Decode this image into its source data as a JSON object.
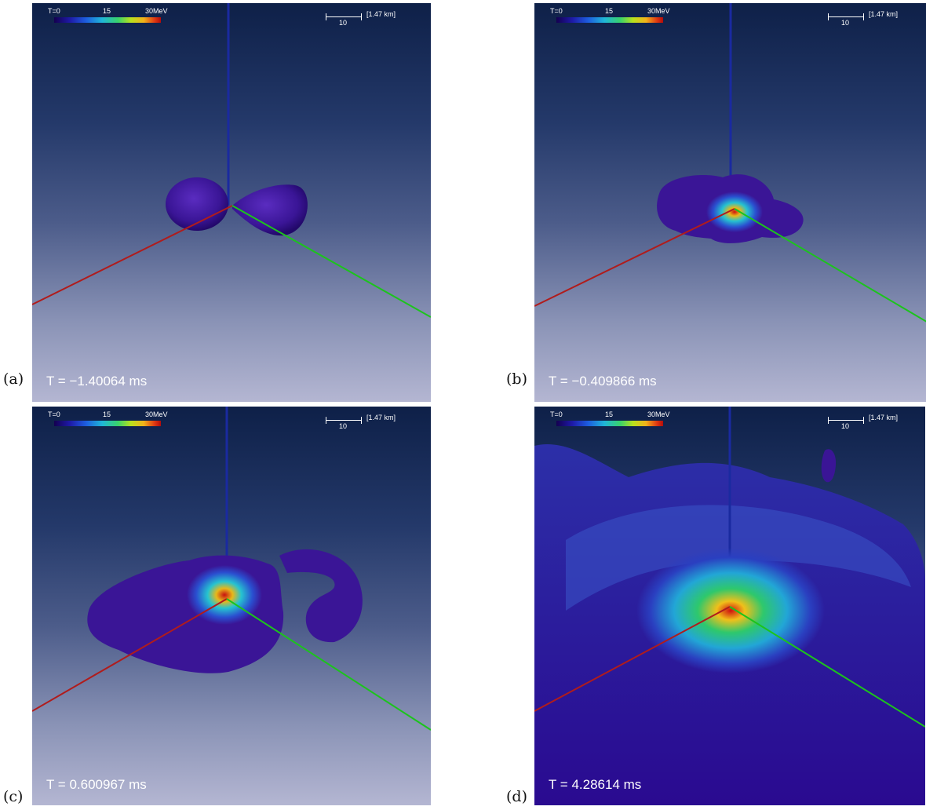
{
  "panels": [
    {
      "label": "(a)",
      "time_text": "T = −1.40064 ms"
    },
    {
      "label": "(b)",
      "time_text": "T = −0.409866 ms"
    },
    {
      "label": "(c)",
      "time_text": "T = 0.600967 ms"
    },
    {
      "label": "(d)",
      "time_text": "T = 4.28614 ms"
    }
  ],
  "colorbar": {
    "labels": [
      "T=0",
      "15",
      "30MeV"
    ],
    "colors": [
      "#140050",
      "#1e1aa8",
      "#1d5ee0",
      "#1fb6d8",
      "#3ad36a",
      "#b9e01d",
      "#f2b21a",
      "#e03a12",
      "#b30b0b"
    ]
  },
  "scalebar": {
    "value": "10",
    "unit": "[1.47 km]"
  },
  "axis_colors": {
    "x": "#b01c1c",
    "y": "#1cc41c",
    "z": "#1a2aa0"
  }
}
